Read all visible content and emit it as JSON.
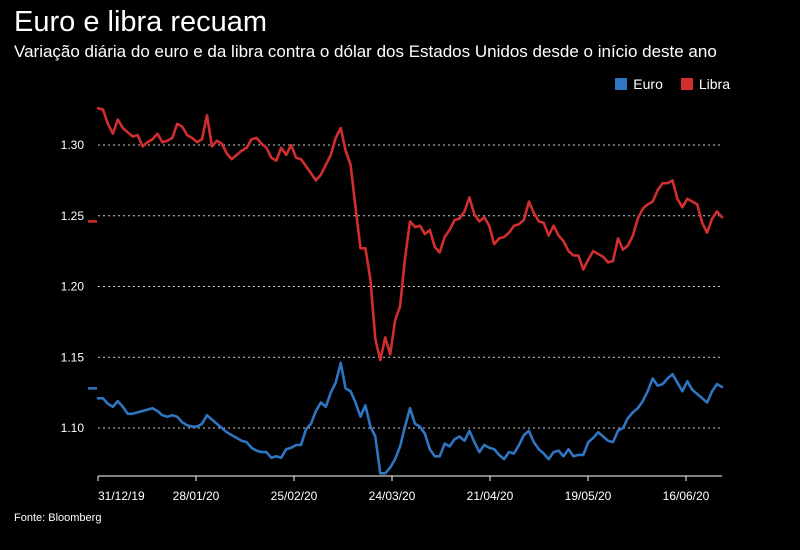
{
  "title": "Euro e libra recuam",
  "subtitle": "Variação diária do euro e da libra contra o dólar dos Estados Unidos desde o início deste ano",
  "source": "Fonte: Bloomberg",
  "colors": {
    "euro": "#2f75c2",
    "libra": "#d12f2f",
    "background": "#000000",
    "grid": "#cccccc"
  },
  "chart_data": {
    "type": "line",
    "x_type": "date",
    "x_ticks": [
      "31/12/19",
      "28/01/20",
      "25/02/20",
      "24/03/20",
      "21/04/20",
      "19/05/20",
      "16/06/20"
    ],
    "y_ticks": [
      "1.30",
      "1.25",
      "1.20",
      "1.15",
      "1.10"
    ],
    "ylim": [
      1.065,
      1.33
    ],
    "grid": "horizontal-dotted",
    "legend_position": "top-right",
    "series": [
      {
        "name": "Euro",
        "color": "#2f75c2",
        "values": [
          1.121,
          1.121,
          1.117,
          1.115,
          1.119,
          1.115,
          1.11,
          1.11,
          1.111,
          1.112,
          1.113,
          1.114,
          1.112,
          1.109,
          1.108,
          1.109,
          1.108,
          1.104,
          1.102,
          1.101,
          1.101,
          1.103,
          1.109,
          1.106,
          1.103,
          1.1,
          1.097,
          1.095,
          1.093,
          1.091,
          1.09,
          1.086,
          1.084,
          1.083,
          1.083,
          1.079,
          1.08,
          1.079,
          1.085,
          1.086,
          1.088,
          1.088,
          1.099,
          1.103,
          1.112,
          1.118,
          1.115,
          1.125,
          1.132,
          1.146,
          1.128,
          1.126,
          1.118,
          1.108,
          1.116,
          1.101,
          1.094,
          1.068,
          1.068,
          1.072,
          1.078,
          1.087,
          1.101,
          1.114,
          1.103,
          1.101,
          1.096,
          1.085,
          1.08,
          1.08,
          1.089,
          1.087,
          1.092,
          1.094,
          1.091,
          1.098,
          1.09,
          1.083,
          1.088,
          1.086,
          1.085,
          1.081,
          1.078,
          1.083,
          1.082,
          1.088,
          1.095,
          1.098,
          1.09,
          1.085,
          1.082,
          1.078,
          1.083,
          1.084,
          1.08,
          1.085,
          1.08,
          1.081,
          1.081,
          1.09,
          1.093,
          1.097,
          1.094,
          1.091,
          1.09,
          1.098,
          1.1,
          1.107,
          1.111,
          1.114,
          1.119,
          1.126,
          1.135,
          1.13,
          1.131,
          1.135,
          1.138,
          1.132,
          1.126,
          1.133,
          1.127,
          1.124,
          1.121,
          1.118,
          1.126,
          1.131,
          1.129
        ]
      },
      {
        "name": "Libra",
        "color": "#d12f2f",
        "values": [
          1.326,
          1.325,
          1.315,
          1.308,
          1.318,
          1.312,
          1.309,
          1.306,
          1.307,
          1.299,
          1.302,
          1.304,
          1.308,
          1.302,
          1.303,
          1.305,
          1.315,
          1.313,
          1.307,
          1.305,
          1.302,
          1.304,
          1.321,
          1.299,
          1.303,
          1.301,
          1.294,
          1.29,
          1.293,
          1.296,
          1.298,
          1.304,
          1.305,
          1.301,
          1.298,
          1.291,
          1.289,
          1.298,
          1.293,
          1.3,
          1.291,
          1.29,
          1.285,
          1.28,
          1.275,
          1.279,
          1.286,
          1.293,
          1.305,
          1.312,
          1.296,
          1.286,
          1.256,
          1.227,
          1.227,
          1.205,
          1.163,
          1.148,
          1.164,
          1.152,
          1.176,
          1.186,
          1.22,
          1.246,
          1.242,
          1.243,
          1.237,
          1.24,
          1.228,
          1.224,
          1.235,
          1.24,
          1.247,
          1.248,
          1.253,
          1.263,
          1.251,
          1.246,
          1.249,
          1.243,
          1.23,
          1.234,
          1.235,
          1.238,
          1.243,
          1.244,
          1.247,
          1.26,
          1.252,
          1.246,
          1.245,
          1.236,
          1.243,
          1.236,
          1.232,
          1.225,
          1.222,
          1.222,
          1.212,
          1.219,
          1.225,
          1.223,
          1.221,
          1.217,
          1.218,
          1.234,
          1.226,
          1.229,
          1.236,
          1.248,
          1.255,
          1.258,
          1.26,
          1.268,
          1.273,
          1.273,
          1.275,
          1.262,
          1.256,
          1.262,
          1.26,
          1.258,
          1.245,
          1.238,
          1.248,
          1.253,
          1.249
        ]
      }
    ],
    "start_markers": {
      "Euro": 1.128,
      "Libra": 1.246
    }
  }
}
